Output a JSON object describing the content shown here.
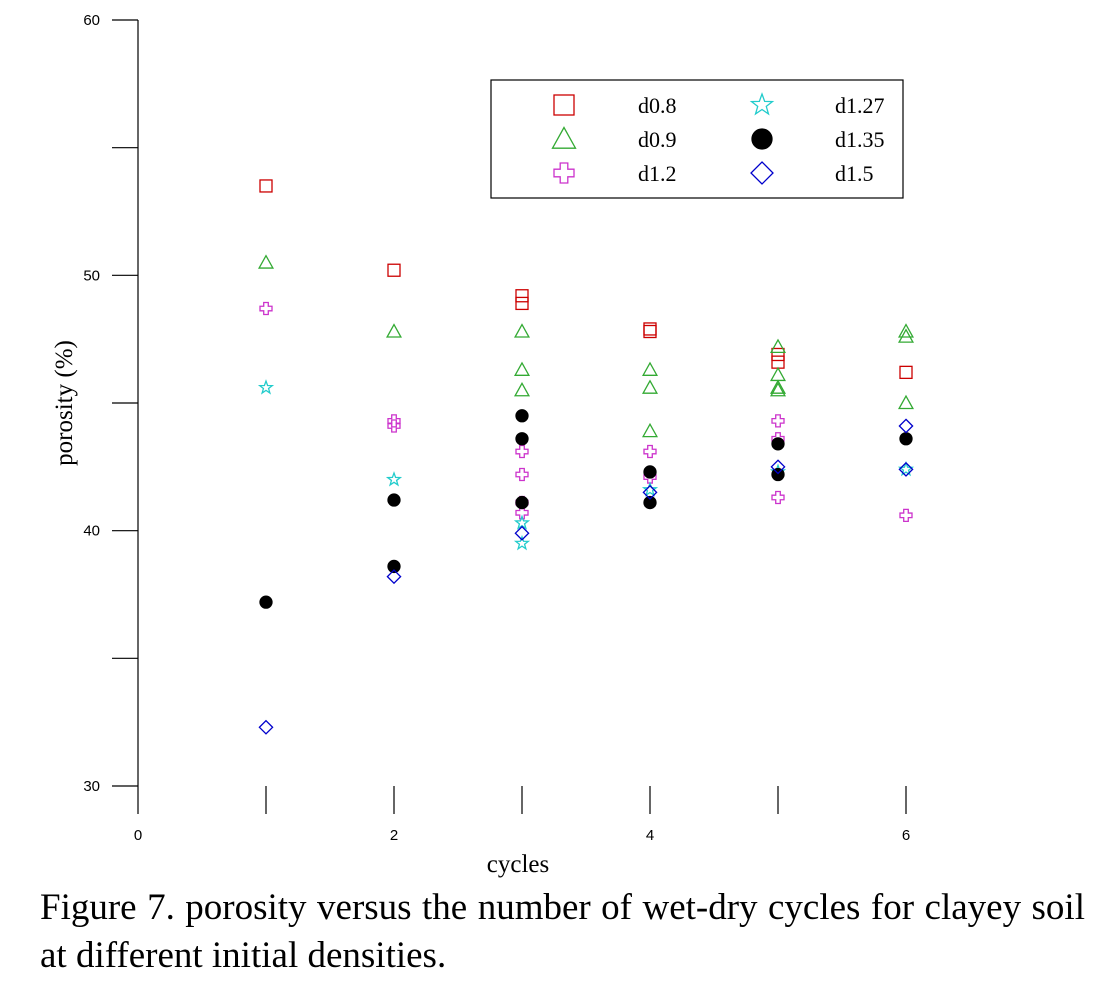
{
  "chart_data": {
    "type": "scatter",
    "xlabel": "cycles",
    "ylabel": "porosity (%)",
    "xlim": [
      0,
      6
    ],
    "ylim": [
      30,
      60
    ],
    "x_ticks": [
      0,
      2,
      4,
      6
    ],
    "y_ticks": [
      30,
      40,
      50,
      60
    ],
    "grid": false,
    "legend_placement": "top-right",
    "series": [
      {
        "name": "d0.8",
        "marker": "square",
        "color": "#cc0000",
        "filled": false,
        "points": [
          [
            1,
            53.5
          ],
          [
            2,
            50.2
          ],
          [
            3,
            49.2
          ],
          [
            3,
            48.9
          ],
          [
            4,
            47.9
          ],
          [
            4,
            47.8
          ],
          [
            5,
            46.9
          ],
          [
            5,
            46.6
          ],
          [
            6,
            46.2
          ]
        ]
      },
      {
        "name": "d0.9",
        "marker": "triangle",
        "color": "#33aa33",
        "filled": false,
        "points": [
          [
            1,
            50.5
          ],
          [
            2,
            47.8
          ],
          [
            3,
            47.8
          ],
          [
            3,
            46.3
          ],
          [
            3,
            45.5
          ],
          [
            4,
            46.3
          ],
          [
            4,
            45.6
          ],
          [
            4,
            43.9
          ],
          [
            5,
            47.2
          ],
          [
            5,
            46.1
          ],
          [
            5,
            45.6
          ],
          [
            5,
            45.5
          ],
          [
            6,
            47.8
          ],
          [
            6,
            47.6
          ],
          [
            6,
            45.0
          ]
        ]
      },
      {
        "name": "d1.2",
        "marker": "plus",
        "color": "#cc33cc",
        "filled": false,
        "points": [
          [
            1,
            48.7
          ],
          [
            2,
            44.3
          ],
          [
            2,
            44.1
          ],
          [
            3,
            43.1
          ],
          [
            3,
            42.2
          ],
          [
            3,
            41.1
          ],
          [
            3,
            40.7
          ],
          [
            4,
            43.1
          ],
          [
            4,
            42.1
          ],
          [
            5,
            44.3
          ],
          [
            5,
            43.6
          ],
          [
            5,
            41.3
          ],
          [
            6,
            40.6
          ]
        ]
      },
      {
        "name": "d1.27",
        "marker": "star",
        "color": "#22cccc",
        "filled": false,
        "points": [
          [
            1,
            45.6
          ],
          [
            2,
            42.0
          ],
          [
            3,
            40.3
          ],
          [
            3,
            39.5
          ],
          [
            4,
            41.6
          ],
          [
            5,
            42.3
          ],
          [
            6,
            42.4
          ]
        ]
      },
      {
        "name": "d1.35",
        "marker": "circle",
        "color": "#000000",
        "filled": true,
        "points": [
          [
            1,
            37.2
          ],
          [
            2,
            41.2
          ],
          [
            2,
            38.6
          ],
          [
            3,
            44.5
          ],
          [
            3,
            43.6
          ],
          [
            3,
            41.1
          ],
          [
            4,
            42.3
          ],
          [
            4,
            41.1
          ],
          [
            5,
            43.4
          ],
          [
            5,
            42.2
          ],
          [
            6,
            43.6
          ]
        ]
      },
      {
        "name": "d1.5",
        "marker": "diamond",
        "color": "#0000cc",
        "filled": false,
        "points": [
          [
            1,
            32.3
          ],
          [
            2,
            38.2
          ],
          [
            3,
            39.9
          ],
          [
            4,
            41.5
          ],
          [
            5,
            42.5
          ],
          [
            6,
            44.1
          ],
          [
            6,
            42.4
          ]
        ]
      }
    ]
  },
  "caption": "Figure 7. porosity  versus the number of wet-dry cycles for clayey soil at different initial densities."
}
